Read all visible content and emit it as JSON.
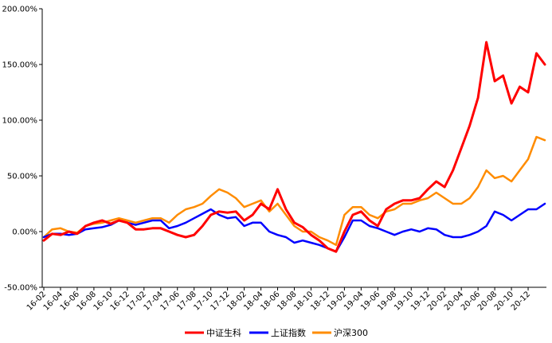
{
  "chart_data": {
    "type": "line",
    "title": "",
    "xlabel": "",
    "ylabel": "",
    "ylim": [
      -50,
      200
    ],
    "yticks": [
      -50,
      0,
      50,
      100,
      150,
      200
    ],
    "ytick_labels": [
      "-50.00%",
      "0.00%",
      "50.00%",
      "100.00%",
      "150.00%",
      "200.00%"
    ],
    "x": [
      "16-02",
      "16-03",
      "16-04",
      "16-05",
      "16-06",
      "16-07",
      "16-08",
      "16-09",
      "16-10",
      "16-11",
      "16-12",
      "17-01",
      "17-02",
      "17-03",
      "17-04",
      "17-05",
      "17-06",
      "17-07",
      "17-08",
      "17-09",
      "17-10",
      "17-11",
      "17-12",
      "18-01",
      "18-02",
      "18-03",
      "18-04",
      "18-05",
      "18-06",
      "18-07",
      "18-08",
      "18-09",
      "18-10",
      "18-11",
      "18-12",
      "19-01",
      "19-02",
      "19-03",
      "19-04",
      "19-05",
      "19-06",
      "19-07",
      "19-08",
      "19-09",
      "19-10",
      "19-11",
      "19-12",
      "20-01",
      "20-02",
      "20-03",
      "20-04",
      "20-05",
      "20-06",
      "20-07",
      "20-08",
      "20-09",
      "20-10",
      "20-11",
      "20-12",
      "21-01",
      "21-02"
    ],
    "xtick_labels": [
      "16-02",
      "16-04",
      "16-06",
      "16-08",
      "16-10",
      "16-12",
      "17-02",
      "17-04",
      "17-06",
      "17-08",
      "17-10",
      "17-12",
      "18-02",
      "18-04",
      "18-06",
      "18-08",
      "18-10",
      "18-12",
      "19-02",
      "19-04",
      "19-06",
      "19-08",
      "19-10",
      "19-12",
      "20-02",
      "20-04",
      "20-06",
      "20-08",
      "20-10",
      "20-12"
    ],
    "legend_position": "bottom",
    "grid": false,
    "series": [
      {
        "name": "中证生科",
        "color": "#ff0000",
        "values": [
          -8,
          -2,
          -3,
          0,
          -2,
          5,
          8,
          10,
          7,
          10,
          8,
          2,
          2,
          3,
          3,
          0,
          -3,
          -5,
          -3,
          5,
          15,
          18,
          17,
          18,
          10,
          15,
          25,
          20,
          38,
          20,
          8,
          4,
          -3,
          -8,
          -15,
          -18,
          0,
          15,
          18,
          10,
          5,
          20,
          25,
          28,
          28,
          30,
          38,
          45,
          40,
          55,
          75,
          95,
          120,
          170,
          135,
          140,
          115,
          130,
          125,
          160,
          150
        ]
      },
      {
        "name": "上证指数",
        "color": "#0000ff",
        "values": [
          -5,
          -2,
          -2,
          -3,
          -2,
          2,
          3,
          4,
          6,
          10,
          8,
          6,
          8,
          10,
          10,
          3,
          5,
          8,
          12,
          16,
          20,
          15,
          12,
          13,
          5,
          8,
          8,
          0,
          -3,
          -5,
          -10,
          -8,
          -10,
          -12,
          -15,
          -18,
          -5,
          10,
          10,
          5,
          3,
          0,
          -3,
          0,
          2,
          0,
          3,
          2,
          -3,
          -5,
          -5,
          -3,
          0,
          5,
          18,
          15,
          10,
          15,
          20,
          20,
          25
        ]
      },
      {
        "name": "沪深300",
        "color": "#ff8c00",
        "values": [
          -5,
          2,
          3,
          0,
          -1,
          5,
          7,
          8,
          10,
          12,
          10,
          8,
          10,
          12,
          12,
          8,
          15,
          20,
          22,
          25,
          32,
          38,
          35,
          30,
          22,
          25,
          28,
          18,
          25,
          15,
          5,
          0,
          0,
          -5,
          -8,
          -12,
          15,
          22,
          22,
          15,
          12,
          18,
          20,
          25,
          25,
          28,
          30,
          35,
          30,
          25,
          25,
          30,
          40,
          55,
          48,
          50,
          45,
          55,
          65,
          85,
          82
        ]
      }
    ]
  }
}
